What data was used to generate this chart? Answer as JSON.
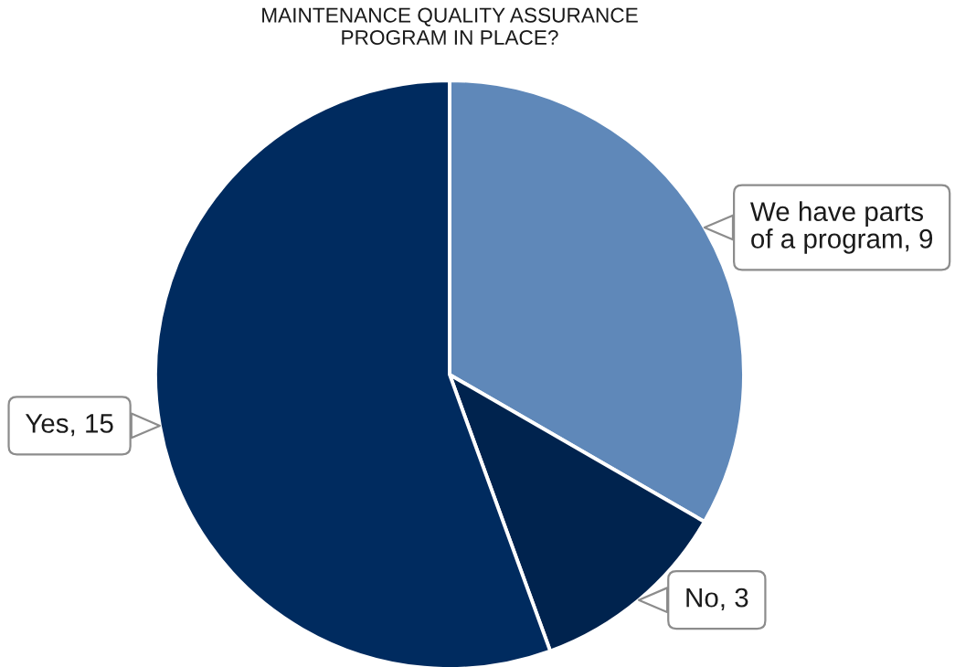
{
  "chart_data": {
    "type": "pie",
    "title": "MAINTENANCE QUALITY ASSURANCE\nPROGRAM IN PLACE?",
    "categories": [
      "We have parts\nof a program, 9",
      "No, 3",
      "Yes, 15"
    ],
    "values": [
      9,
      3,
      15
    ],
    "colors": [
      "#5f88b9",
      "#00234e",
      "#002b5f"
    ]
  }
}
